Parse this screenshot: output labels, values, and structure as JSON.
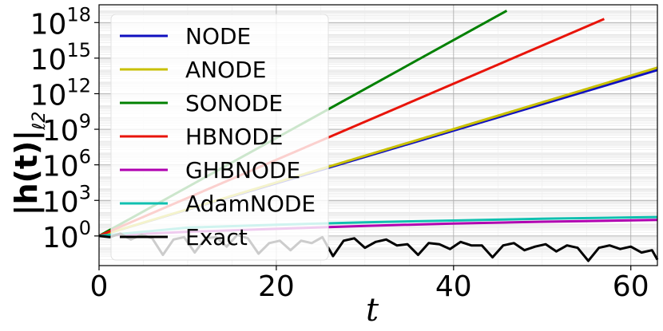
{
  "chart_data": {
    "type": "line",
    "title": "",
    "xlabel": "t",
    "ylabel": "|h(t)|",
    "ylabel_subscript": "ℓ2",
    "y_scale": "log",
    "xlim": [
      0,
      63
    ],
    "ylim_exponent": [
      -2.5,
      19.5
    ],
    "x_ticks": [
      {
        "value": 0,
        "label": "0"
      },
      {
        "value": 20,
        "label": "20"
      },
      {
        "value": 40,
        "label": "40"
      },
      {
        "value": 60,
        "label": "60"
      }
    ],
    "y_ticks": [
      {
        "exp": 0,
        "base": "10",
        "sup": "0"
      },
      {
        "exp": 3,
        "base": "10",
        "sup": "3"
      },
      {
        "exp": 6,
        "base": "10",
        "sup": "6"
      },
      {
        "exp": 9,
        "base": "10",
        "sup": "9"
      },
      {
        "exp": 12,
        "base": "10",
        "sup": "12"
      },
      {
        "exp": 15,
        "base": "10",
        "sup": "15"
      },
      {
        "exp": 18,
        "base": "10",
        "sup": "18"
      }
    ],
    "grid": true,
    "legend_position": "top-left",
    "series": [
      {
        "name": "NODE",
        "color": "#1010c0",
        "x": [
          0,
          63
        ],
        "log10_y": [
          0,
          14.0
        ]
      },
      {
        "name": "ANODE",
        "color": "#c8c000",
        "x": [
          0,
          63
        ],
        "log10_y": [
          0,
          14.2
        ]
      },
      {
        "name": "SONODE",
        "color": "#008000",
        "x": [
          0,
          46
        ],
        "log10_y": [
          0,
          19.0
        ]
      },
      {
        "name": "HBNODE",
        "color": "#e8140a",
        "x": [
          0,
          57
        ],
        "log10_y": [
          0,
          18.3
        ]
      },
      {
        "name": "GHBNODE",
        "color": "#b000b0",
        "x": [
          0,
          10,
          20,
          30,
          40,
          50,
          63
        ],
        "log10_y": [
          0,
          0.35,
          0.6,
          0.85,
          1.05,
          1.2,
          1.35
        ]
      },
      {
        "name": "AdamNODE",
        "color": "#10c0b0",
        "x": [
          0,
          10,
          20,
          30,
          40,
          50,
          63
        ],
        "log10_y": [
          0,
          0.7,
          0.95,
          1.15,
          1.3,
          1.45,
          1.6
        ]
      },
      {
        "name": "Exact",
        "color": "#000000",
        "x": [
          0,
          1.2,
          2.4,
          3.6,
          4.8,
          6,
          7.2,
          8.4,
          9.6,
          10.8,
          12,
          13.2,
          14.4,
          15.6,
          16.8,
          18,
          19.2,
          20.4,
          21.6,
          22.8,
          24,
          25.2,
          26.4,
          27.6,
          28.8,
          30,
          31.2,
          32.4,
          33.6,
          34.8,
          36,
          37.2,
          38.4,
          39.6,
          40.8,
          42,
          43.2,
          44.4,
          45.6,
          46.8,
          48,
          49.2,
          50.4,
          51.6,
          52.8,
          54,
          55.2,
          56.4,
          57.6,
          58.8,
          60,
          61.2,
          62.4,
          63
        ],
        "log10_y": [
          0,
          -0.1,
          0.2,
          -0.3,
          0.1,
          -0.2,
          -1.6,
          -0.3,
          -0.1,
          -1.4,
          -0.2,
          -0.1,
          -0.9,
          0.1,
          -0.2,
          -1.5,
          -0.6,
          -0.4,
          -1.2,
          -0.4,
          -0.6,
          -0.1,
          -1.7,
          -0.4,
          -0.2,
          -1.0,
          -0.5,
          -0.3,
          -0.8,
          -0.7,
          -1.6,
          -0.6,
          -0.7,
          -1.1,
          -0.5,
          -0.8,
          -0.8,
          -1.8,
          -0.8,
          -0.6,
          -1.2,
          -0.9,
          -0.7,
          -1.3,
          -0.8,
          -1.0,
          -2.1,
          -1.0,
          -0.8,
          -1.1,
          -0.9,
          -1.4,
          -1.2,
          -2.0
        ]
      }
    ]
  }
}
